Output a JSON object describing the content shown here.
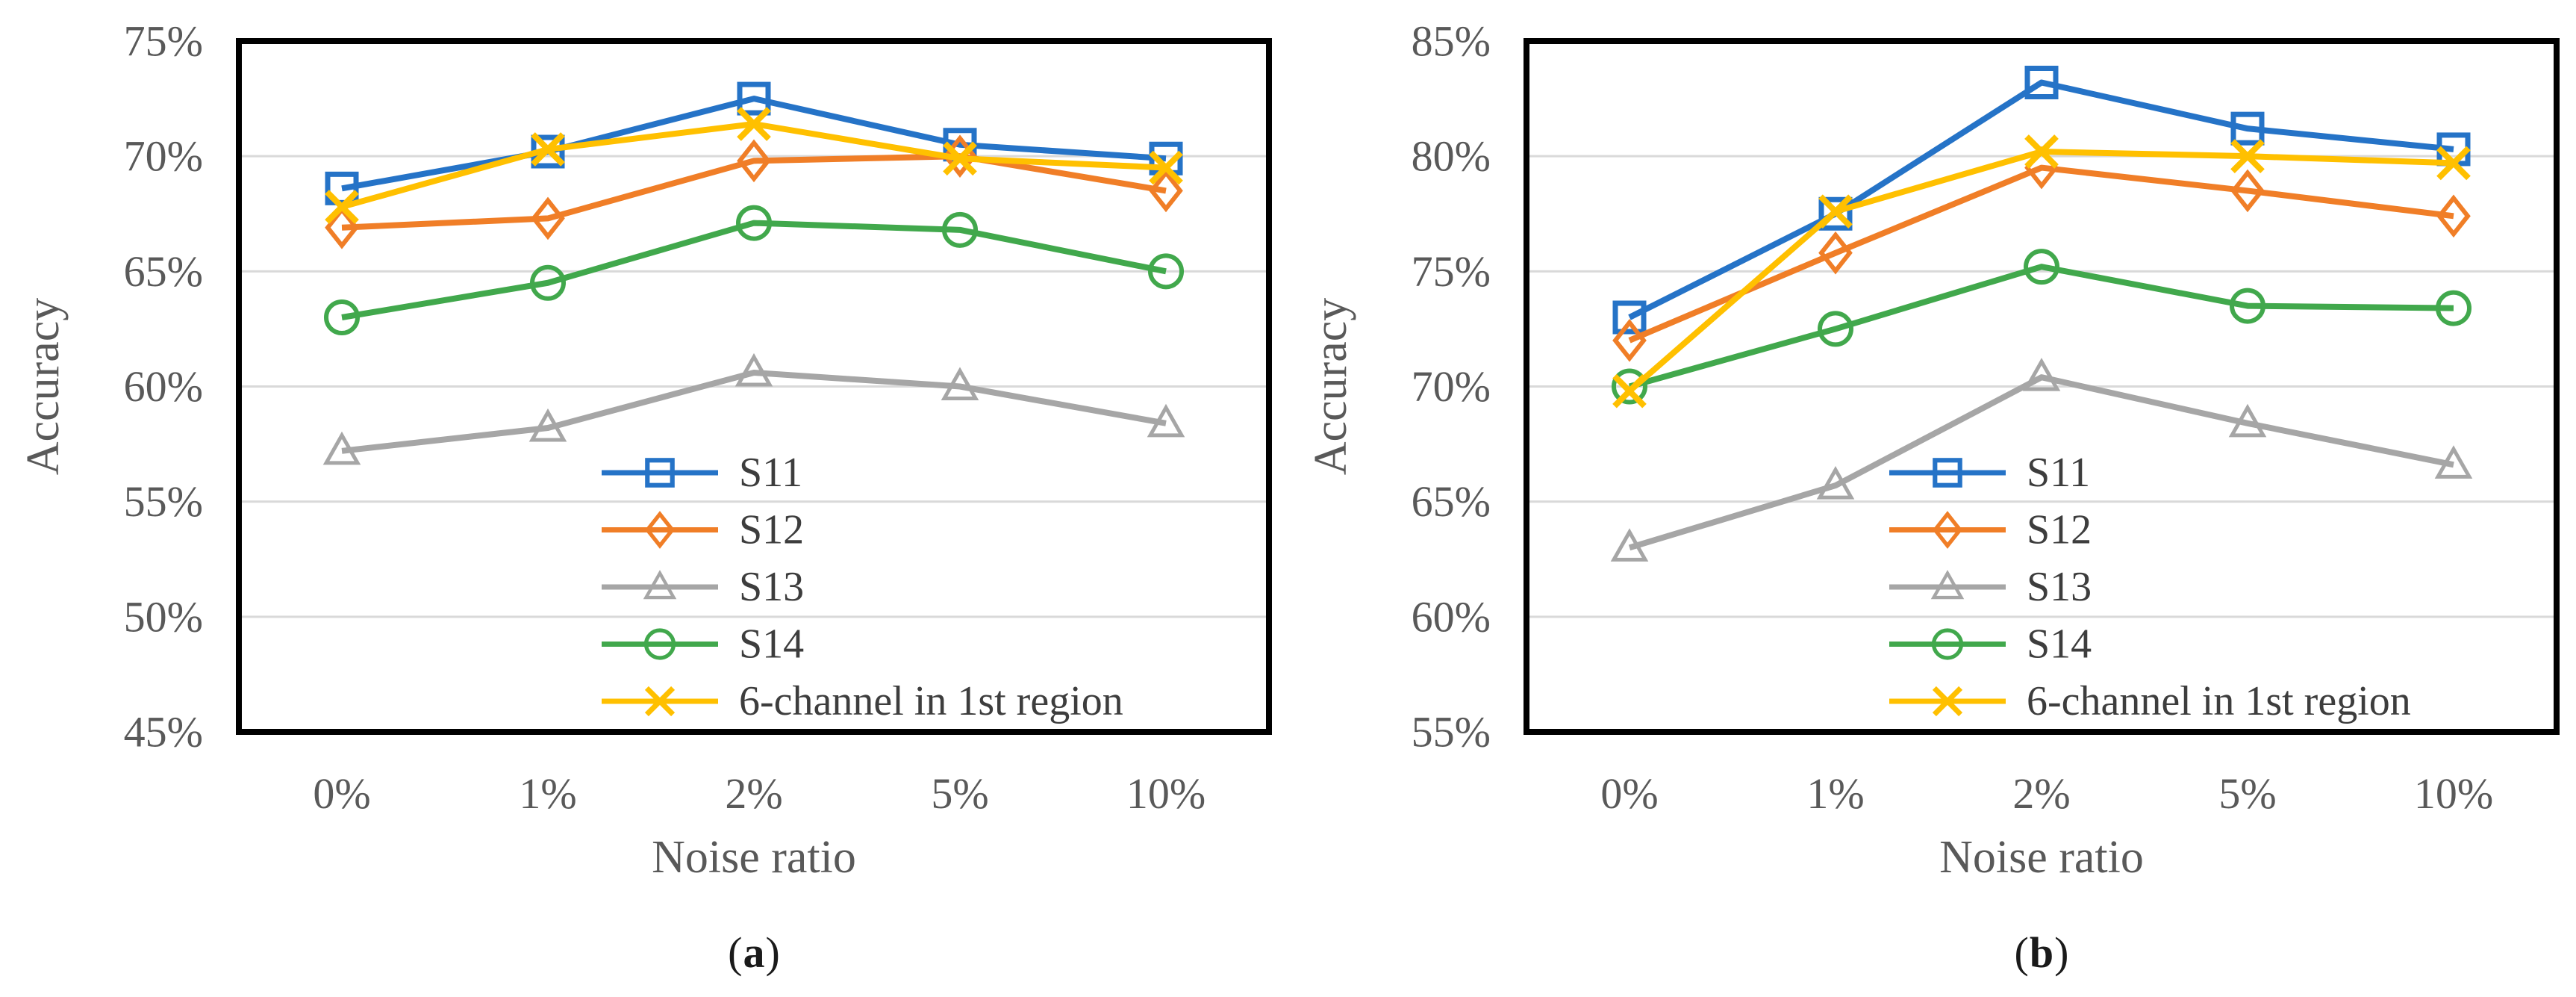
{
  "style": {
    "background": "#ffffff",
    "axis_text_color": "#595959",
    "legend_text_color": "#3d3d3d",
    "gridline_color": "#d9d9d9",
    "plot_border_color": "#000000",
    "series_colors": {
      "blue": "#2573c7",
      "orange": "#f07e27",
      "gray": "#a6a6a6",
      "green": "#41a84c",
      "yellow": "#ffc000"
    }
  },
  "chart_data": [
    {
      "id": "a",
      "type": "line",
      "caption": {
        "open": "(",
        "letter": "a",
        "close": ")"
      },
      "xlabel": "Noise ratio",
      "ylabel": "Accuracy",
      "categories": [
        "0%",
        "1%",
        "2%",
        "5%",
        "10%"
      ],
      "ylim": [
        45,
        75
      ],
      "y_tick_step": 5,
      "y_tick_labels": [
        "45%",
        "50%",
        "55%",
        "60%",
        "65%",
        "70%",
        "75%"
      ],
      "grid": "horizontal-only",
      "legend_position": "inside-lower-right",
      "series": [
        {
          "name": "S11",
          "color": "#2573c7",
          "marker": "square",
          "values": [
            68.6,
            70.2,
            72.5,
            70.5,
            69.9
          ]
        },
        {
          "name": "S12",
          "color": "#f07e27",
          "marker": "diamond",
          "values": [
            66.9,
            67.3,
            69.8,
            70.0,
            68.5
          ]
        },
        {
          "name": "S13",
          "color": "#a6a6a6",
          "marker": "triangle",
          "values": [
            57.2,
            58.2,
            60.6,
            60.0,
            58.4
          ]
        },
        {
          "name": "S14",
          "color": "#41a84c",
          "marker": "circle",
          "values": [
            63.0,
            64.5,
            67.1,
            66.8,
            65.0
          ]
        },
        {
          "name": "6-channel in 1st region",
          "color": "#ffc000",
          "marker": "x",
          "values": [
            67.8,
            70.3,
            71.4,
            69.9,
            69.5
          ]
        }
      ]
    },
    {
      "id": "b",
      "type": "line",
      "caption": {
        "open": "(",
        "letter": "b",
        "close": ")"
      },
      "xlabel": "Noise ratio",
      "ylabel": "Accuracy",
      "categories": [
        "0%",
        "1%",
        "2%",
        "5%",
        "10%"
      ],
      "ylim": [
        55,
        85
      ],
      "y_tick_step": 5,
      "y_tick_labels": [
        "55%",
        "60%",
        "65%",
        "70%",
        "75%",
        "80%",
        "85%"
      ],
      "grid": "horizontal-only",
      "legend_position": "inside-lower-right",
      "series": [
        {
          "name": "S11",
          "color": "#2573c7",
          "marker": "square",
          "values": [
            73.0,
            77.5,
            83.2,
            81.2,
            80.3
          ]
        },
        {
          "name": "S12",
          "color": "#f07e27",
          "marker": "diamond",
          "values": [
            72.0,
            75.8,
            79.5,
            78.5,
            77.4
          ]
        },
        {
          "name": "S13",
          "color": "#a6a6a6",
          "marker": "triangle",
          "values": [
            63.0,
            65.7,
            70.4,
            68.4,
            66.6
          ]
        },
        {
          "name": "S14",
          "color": "#41a84c",
          "marker": "circle",
          "values": [
            70.0,
            72.5,
            75.2,
            73.5,
            73.4
          ]
        },
        {
          "name": "6-channel in 1st region",
          "color": "#ffc000",
          "marker": "x",
          "values": [
            69.8,
            77.6,
            80.2,
            80.0,
            79.7
          ]
        }
      ]
    }
  ]
}
